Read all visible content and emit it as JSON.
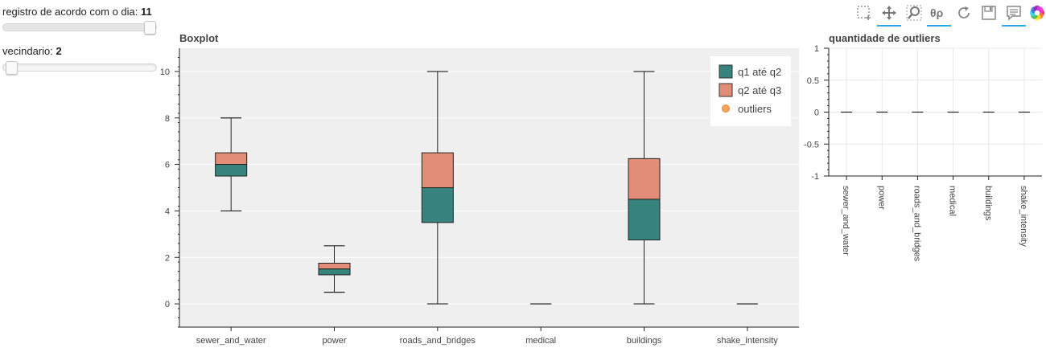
{
  "controls": {
    "day_slider": {
      "label": "registro de acordo com o dia:",
      "value": "11",
      "position": 1.0
    },
    "neighborhood_slider": {
      "label": "vecindario:",
      "value": "2",
      "position": 0.0
    }
  },
  "toolbar": {
    "icons": [
      "box-select-icon",
      "pan-icon",
      "zoom-icon",
      "hover-icon",
      "reset-icon",
      "save-icon",
      "tooltip-icon",
      "bokeh-logo-icon"
    ],
    "active": [
      "pan-icon",
      "hover-icon",
      "tooltip-icon"
    ],
    "accent_color": "#26aae1"
  },
  "colors": {
    "q1_q2": "#37847f",
    "q2_q3": "#e28d77",
    "outliers": "#f4a460",
    "plot_background": "#efefef"
  },
  "chart_data": [
    {
      "type": "boxplot",
      "title": "Boxplot",
      "categories": [
        "sewer_and_water",
        "power",
        "roads_and_bridges",
        "medical",
        "buildings",
        "shake_intensity"
      ],
      "series": [
        {
          "category": "sewer_and_water",
          "lower": 4,
          "q1": 5.5,
          "q2": 6,
          "q3": 6.5,
          "upper": 8
        },
        {
          "category": "power",
          "lower": 0.5,
          "q1": 1.25,
          "q2": 1.5,
          "q3": 1.75,
          "upper": 2.5
        },
        {
          "category": "roads_and_bridges",
          "lower": 0,
          "q1": 3.5,
          "q2": 5,
          "q3": 6.5,
          "upper": 10
        },
        {
          "category": "medical",
          "lower": 0,
          "q1": 0,
          "q2": 0,
          "q3": 0,
          "upper": 0
        },
        {
          "category": "buildings",
          "lower": 0,
          "q1": 2.75,
          "q2": 4.5,
          "q3": 6.25,
          "upper": 10
        },
        {
          "category": "shake_intensity",
          "lower": 0,
          "q1": 0,
          "q2": 0,
          "q3": 0,
          "upper": 0
        }
      ],
      "ylim": [
        -1,
        11
      ],
      "yticks": [
        0,
        2,
        4,
        6,
        8,
        10
      ],
      "legend": {
        "placement": "top-right",
        "entries": [
          "q1 até q2",
          "q2 até q3",
          "outliers"
        ]
      },
      "grid": true
    },
    {
      "type": "bar",
      "title": "quantidade de outliers",
      "categories": [
        "sewer_and_water",
        "power",
        "roads_and_bridges",
        "medical",
        "buildings",
        "shake_intensity"
      ],
      "values": [
        0,
        0,
        0,
        0,
        0,
        0
      ],
      "ylim": [
        -1,
        1
      ],
      "yticks": [
        "-1",
        "-0.5",
        "0",
        "0.5",
        "1"
      ],
      "grid": true
    }
  ]
}
